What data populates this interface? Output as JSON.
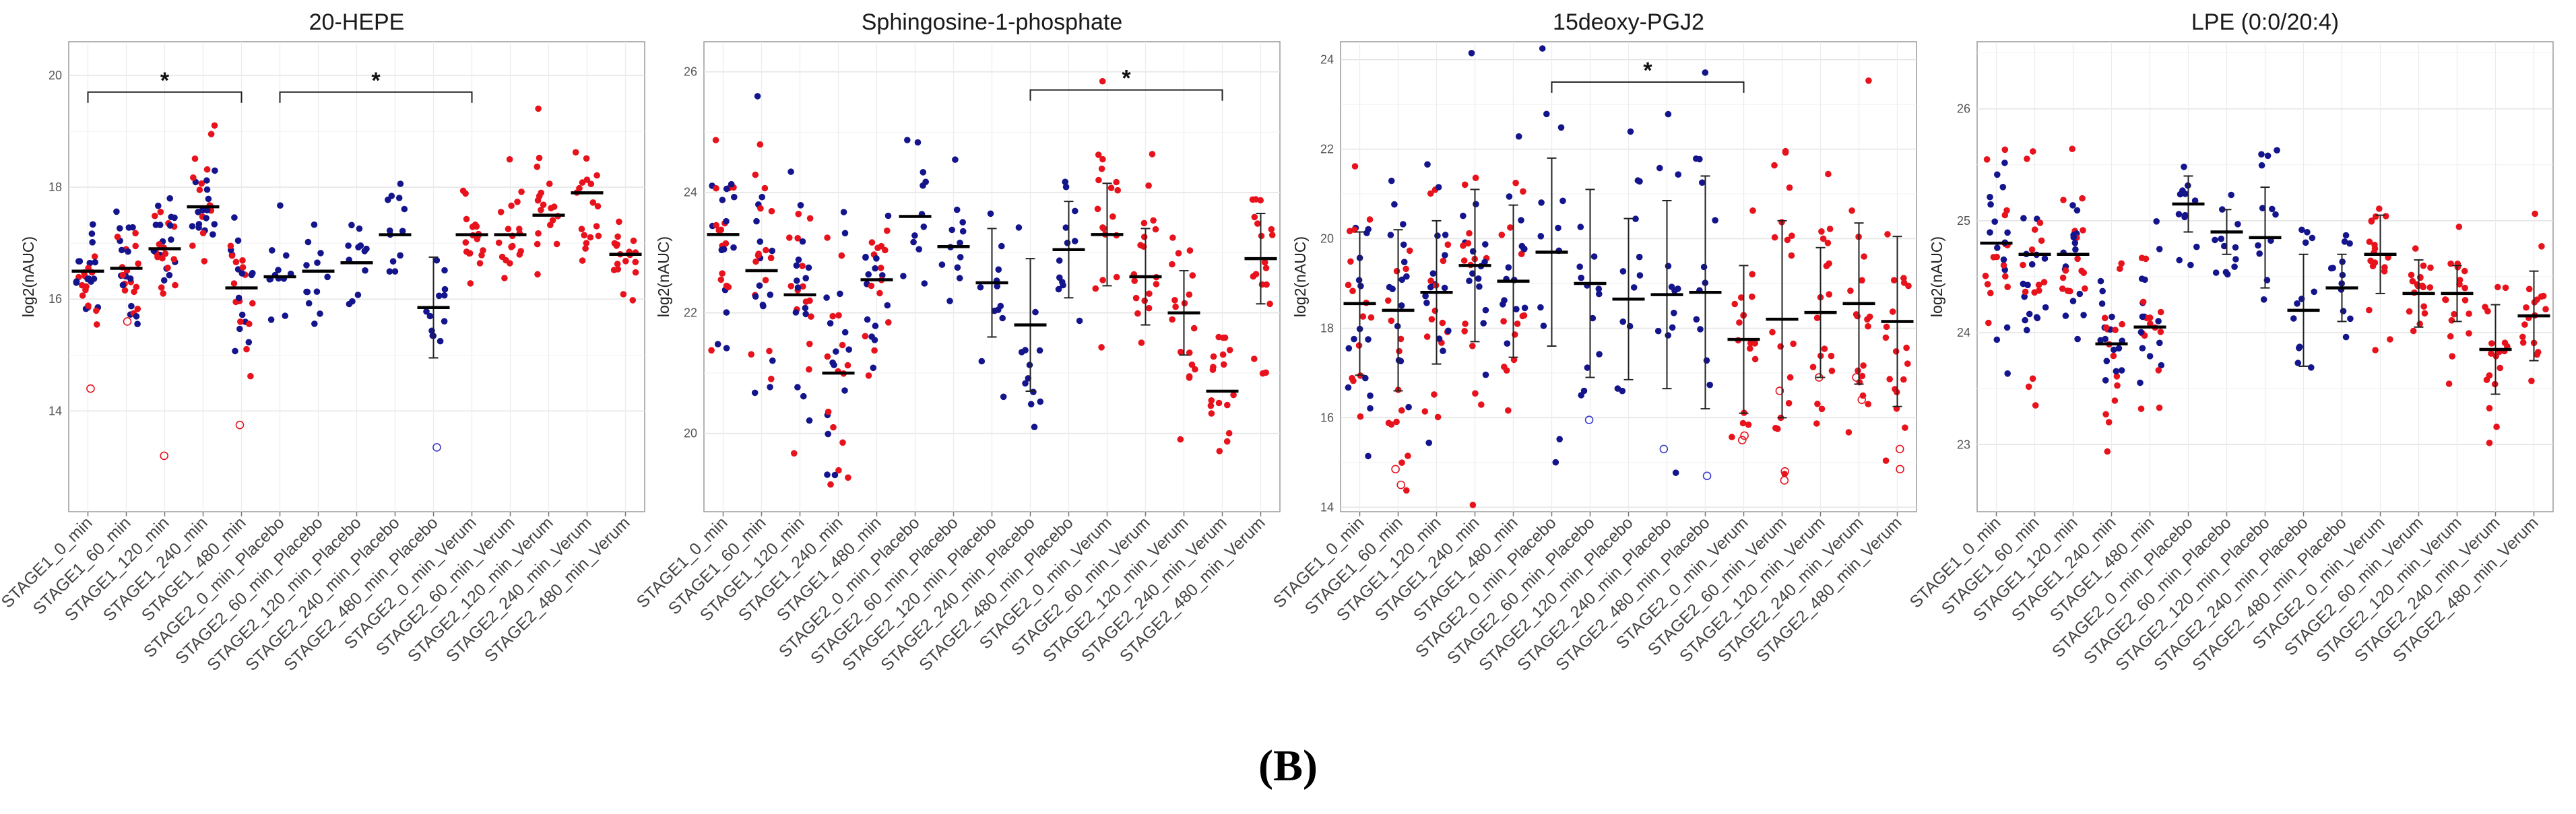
{
  "figure_label": "(B)",
  "colors": {
    "stage1": "#14148c",
    "placebo": "#14148c",
    "verum": "#e8121c",
    "mean": "#000000",
    "outlier_blue": "#3a3acc",
    "outlier_red": "#e8121c"
  },
  "chart_data": [
    {
      "type": "scatter",
      "title": "20-HEPE",
      "ylabel": "log2(nAUC)",
      "ylim": [
        12.2,
        20.6
      ],
      "yticks": [
        14,
        16,
        18,
        20
      ],
      "grid": true,
      "categories": [
        "STAGE1_0_min",
        "STAGE1_60_min",
        "STAGE1_120_min",
        "STAGE1_240_min",
        "STAGE1_480_min",
        "STAGE2_0_min_Placebo",
        "STAGE2_60_min_Placebo",
        "STAGE2_120_min_Placebo",
        "STAGE2_240_min_Placebo",
        "STAGE2_480_min_Placebo",
        "STAGE2_0_min_Verum",
        "STAGE2_60_min_Verum",
        "STAGE2_120_min_Verum",
        "STAGE2_240_min_Verum",
        "STAGE2_480_min_Verum"
      ],
      "group": [
        "mixed",
        "mixed",
        "mixed",
        "mixed",
        "mixed",
        "placebo",
        "placebo",
        "placebo",
        "placebo",
        "placebo",
        "verum",
        "verum",
        "verum",
        "verum",
        "verum"
      ],
      "series": [
        {
          "values": [
            16.5,
            16.55,
            16.9,
            17.65,
            16.2,
            16.4,
            16.5,
            16.65,
            17.15,
            15.85,
            17.15,
            17.15,
            17.5,
            17.9,
            16.8
          ]
        }
      ],
      "errors": [
        null,
        null,
        null,
        null,
        null,
        null,
        null,
        null,
        null,
        0.9,
        null,
        null,
        null,
        null,
        null
      ],
      "spread": [
        0.6,
        0.5,
        0.6,
        0.55,
        0.65,
        0.5,
        0.55,
        0.6,
        0.6,
        0.55,
        0.4,
        0.45,
        0.5,
        0.5,
        0.35
      ],
      "n": [
        30,
        30,
        30,
        30,
        28,
        12,
        12,
        12,
        12,
        12,
        18,
        18,
        18,
        18,
        18
      ],
      "outliers": [
        [
          0,
          14.4
        ],
        [
          1,
          15.6
        ],
        [
          2,
          13.2
        ],
        [
          4,
          13.75
        ],
        [
          9,
          13.35
        ]
      ],
      "significance": [
        {
          "from": 0,
          "to": 4,
          "label": "*",
          "y": 19.7
        },
        {
          "from": 5,
          "to": 10,
          "label": "*",
          "y": 19.7
        }
      ]
    },
    {
      "type": "scatter",
      "title": "Sphingosine-1-phosphate",
      "ylabel": "log2(nAUC)",
      "ylim": [
        18.7,
        26.5
      ],
      "yticks": [
        20,
        22,
        24,
        26
      ],
      "grid": true,
      "categories": [
        "STAGE1_0_min",
        "STAGE1_60_min",
        "STAGE1_120_min",
        "STAGE1_240_min",
        "STAGE1_480_min",
        "STAGE2_0_min_Placebo",
        "STAGE2_60_min_Placebo",
        "STAGE2_120_min_Placebo",
        "STAGE2_240_min_Placebo",
        "STAGE2_480_min_Placebo",
        "STAGE2_0_min_Verum",
        "STAGE2_60_min_Verum",
        "STAGE2_120_min_Verum",
        "STAGE2_240_min_Verum",
        "STAGE2_480_min_Verum"
      ],
      "group": [
        "mixed",
        "mixed",
        "mixed",
        "mixed",
        "mixed",
        "placebo",
        "placebo",
        "placebo",
        "placebo",
        "placebo",
        "verum",
        "verum",
        "verum",
        "verum",
        "verum"
      ],
      "series": [
        {
          "values": [
            23.3,
            22.7,
            22.3,
            21.0,
            22.55,
            23.6,
            23.1,
            22.5,
            21.8,
            23.05,
            23.3,
            22.6,
            22.0,
            20.7,
            22.9
          ]
        }
      ],
      "errors": [
        null,
        null,
        null,
        null,
        null,
        null,
        null,
        0.9,
        1.1,
        0.8,
        0.85,
        0.8,
        0.7,
        null,
        0.75
      ],
      "spread": [
        0.9,
        0.9,
        1.0,
        1.0,
        0.8,
        0.7,
        0.8,
        0.9,
        1.1,
        0.8,
        0.85,
        0.8,
        0.7,
        0.6,
        0.75
      ],
      "n": [
        30,
        30,
        30,
        30,
        28,
        12,
        12,
        12,
        12,
        12,
        18,
        18,
        18,
        18,
        18
      ],
      "outliers": [],
      "significance": [
        {
          "from": 8,
          "to": 13,
          "label": "*",
          "y": 25.7
        }
      ]
    },
    {
      "type": "scatter",
      "title": "15deoxy-PGJ2",
      "ylabel": "log2(nAUC)",
      "ylim": [
        13.9,
        24.4
      ],
      "yticks": [
        14,
        16,
        18,
        20,
        22,
        24
      ],
      "grid": true,
      "categories": [
        "STAGE1_0_min",
        "STAGE1_60_min",
        "STAGE1_120_min",
        "STAGE1_240_min",
        "STAGE1_480_min",
        "STAGE2_0_min_Placebo",
        "STAGE2_60_min_Placebo",
        "STAGE2_120_min_Placebo",
        "STAGE2_240_min_Placebo",
        "STAGE2_480_min_Placebo",
        "STAGE2_0_min_Verum",
        "STAGE2_60_min_Verum",
        "STAGE2_120_min_Verum",
        "STAGE2_240_min_Verum",
        "STAGE2_480_min_Verum"
      ],
      "group": [
        "mixed",
        "mixed",
        "mixed",
        "mixed",
        "mixed",
        "placebo",
        "placebo",
        "placebo",
        "placebo",
        "placebo",
        "verum",
        "verum",
        "verum",
        "verum",
        "verum"
      ],
      "series": [
        {
          "values": [
            18.55,
            18.4,
            18.8,
            19.4,
            19.05,
            19.7,
            19.0,
            18.65,
            18.75,
            18.8,
            17.75,
            18.2,
            18.35,
            18.55,
            18.15
          ]
        }
      ],
      "errors": [
        1.6,
        1.8,
        1.6,
        1.7,
        1.7,
        2.1,
        2.1,
        1.8,
        2.1,
        2.6,
        1.65,
        2.2,
        1.45,
        1.8,
        1.9
      ],
      "spread": [
        1.6,
        1.8,
        1.6,
        1.7,
        1.7,
        2.1,
        2.1,
        1.8,
        2.1,
        2.6,
        1.65,
        2.2,
        1.45,
        1.8,
        1.9
      ],
      "n": [
        30,
        30,
        30,
        30,
        28,
        12,
        12,
        12,
        12,
        12,
        18,
        18,
        18,
        18,
        18
      ],
      "outliers": [
        [
          1,
          14.85
        ],
        [
          1,
          14.5
        ],
        [
          6,
          15.95
        ],
        [
          8,
          15.3
        ],
        [
          9,
          14.7
        ],
        [
          10,
          15.6
        ],
        [
          10,
          15.5
        ],
        [
          11,
          16.6
        ],
        [
          11,
          14.8
        ],
        [
          11,
          14.6
        ],
        [
          12,
          16.9
        ],
        [
          13,
          16.9
        ],
        [
          13,
          16.4
        ],
        [
          14,
          15.3
        ],
        [
          14,
          14.85
        ]
      ],
      "significance": [
        {
          "from": 5,
          "to": 10,
          "label": "*",
          "y": 23.5
        }
      ]
    },
    {
      "type": "scatter",
      "title": "LPE (0:0/20:4)",
      "ylabel": "log2(nAUC)",
      "ylim": [
        22.4,
        26.6
      ],
      "yticks": [
        23,
        24,
        25,
        26
      ],
      "grid": true,
      "categories": [
        "STAGE1_0_min",
        "STAGE1_60_min",
        "STAGE1_120_min",
        "STAGE1_240_min",
        "STAGE1_480_min",
        "STAGE2_0_min_Placebo",
        "STAGE2_60_min_Placebo",
        "STAGE2_120_min_Placebo",
        "STAGE2_240_min_Placebo",
        "STAGE2_480_min_Placebo",
        "STAGE2_0_min_Verum",
        "STAGE2_60_min_Verum",
        "STAGE2_120_min_Verum",
        "STAGE2_240_min_Verum",
        "STAGE2_480_min_Verum"
      ],
      "group": [
        "mixed",
        "mixed",
        "mixed",
        "mixed",
        "mixed",
        "placebo",
        "placebo",
        "placebo",
        "placebo",
        "placebo",
        "verum",
        "verum",
        "verum",
        "verum",
        "verum"
      ],
      "series": [
        {
          "values": [
            24.8,
            24.7,
            24.7,
            23.9,
            24.05,
            25.15,
            24.9,
            24.85,
            24.2,
            24.4,
            24.7,
            24.35,
            24.35,
            23.85,
            24.15
          ]
        }
      ],
      "errors": [
        null,
        null,
        null,
        null,
        null,
        0.25,
        0.2,
        0.45,
        0.5,
        0.3,
        0.35,
        0.3,
        0.25,
        0.4,
        0.4
      ],
      "spread": [
        0.4,
        0.4,
        0.4,
        0.35,
        0.4,
        0.3,
        0.25,
        0.45,
        0.5,
        0.3,
        0.35,
        0.3,
        0.25,
        0.4,
        0.4
      ],
      "n": [
        30,
        30,
        30,
        30,
        28,
        12,
        12,
        12,
        12,
        12,
        18,
        18,
        18,
        18,
        18
      ],
      "outliers": [],
      "significance": []
    }
  ]
}
